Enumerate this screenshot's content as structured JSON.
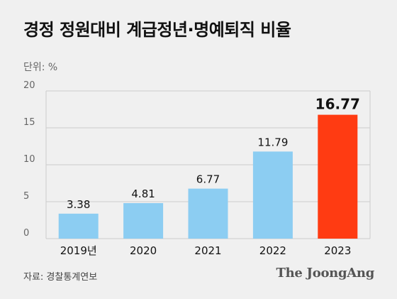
{
  "header": {
    "title": "경정 정원대비 계급정년·명예퇴직 비율",
    "unit": "단위: %"
  },
  "footer": {
    "source": "자료: 경찰통계연보",
    "brand": "The JoongAng"
  },
  "colors": {
    "bar_default": "#8ccdf2",
    "bar_highlight": "#ff3b12",
    "grid": "#cccccc"
  },
  "chart_data": {
    "type": "bar",
    "categories": [
      "2019년",
      "2020",
      "2021",
      "2022",
      "2023"
    ],
    "values": [
      3.38,
      4.81,
      6.77,
      11.79,
      16.77
    ],
    "data_labels": [
      "3.38",
      "4.81",
      "6.77",
      "11.79",
      "16.77"
    ],
    "highlight_index": 4,
    "title": "경정 정원대비 계급정년·명예퇴직 비율",
    "ylabel": "단위: %",
    "ylim": [
      0,
      20
    ],
    "yticks": [
      "0",
      "5",
      "10",
      "15",
      "20"
    ],
    "grid": true
  }
}
